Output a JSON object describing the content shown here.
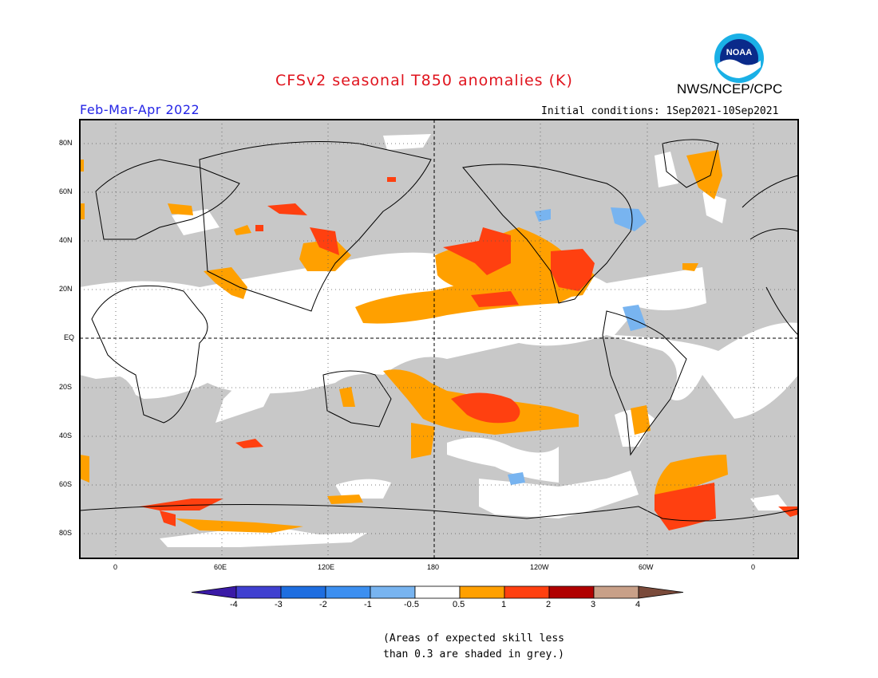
{
  "header": {
    "title": "CFSv2 seasonal T850 anomalies (K)",
    "period": "Feb-Mar-Apr 2022",
    "agency": "NWS/NCEP/CPC",
    "logo_text": "NOAA",
    "initial_conditions": "Initial conditions: 1Sep2021-10Sep2021"
  },
  "map": {
    "lat_labels": [
      "80N",
      "60N",
      "40N",
      "20N",
      "EQ",
      "20S",
      "40S",
      "60S",
      "80S"
    ],
    "lon_labels": [
      "0",
      "60E",
      "120E",
      "180",
      "120W",
      "60W",
      "0"
    ],
    "mask_color": "#c8c8c8",
    "grid_style": "dotted"
  },
  "colorbar": {
    "labels": [
      "-4",
      "-3",
      "-2",
      "-1",
      "-0.5",
      "0.5",
      "1",
      "2",
      "3",
      "4"
    ],
    "colors": [
      "#3a1aa6",
      "#4040d0",
      "#1e6ee0",
      "#3c8ff0",
      "#78b4f0",
      "#ffffff",
      "#ffa000",
      "#ff4010",
      "#b00000",
      "#c8a088",
      "#7a4a3a"
    ]
  },
  "note": {
    "line1": "(Areas of expected skill less",
    "line2": "than 0.3 are shaded in grey.)"
  }
}
